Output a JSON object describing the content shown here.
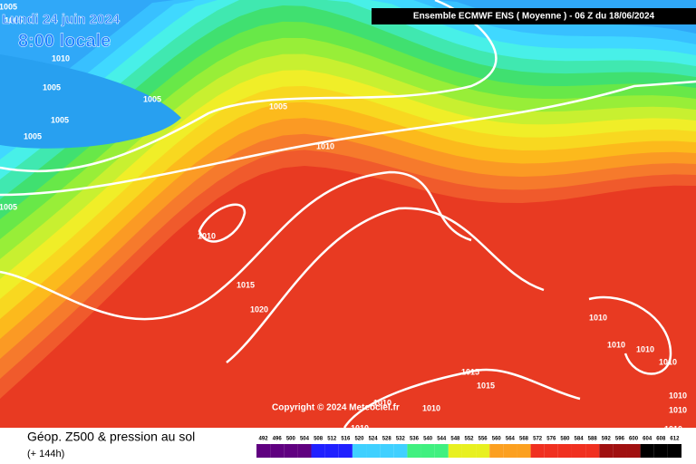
{
  "header": {
    "date": "Lundi 24 juin 2024",
    "time": "8:00 locale",
    "run": "Ensemble ECMWF ENS  ( Moyenne )  - 06 Z du 18/06/2024"
  },
  "copyright": "Copyright © 2024 Meteociel.fr",
  "footer": {
    "title": "Géop. Z500 & pression au sol",
    "subtitle": "(+ 144h)"
  },
  "scale": {
    "labels": [
      492,
      496,
      500,
      504,
      508,
      512,
      516,
      520,
      524,
      528,
      532,
      536,
      540,
      544,
      548,
      552,
      556,
      560,
      564,
      568,
      572,
      576,
      580,
      584,
      588,
      592,
      596,
      600,
      604,
      608,
      612
    ]
  },
  "isobars": [
    1005,
    1010,
    1005,
    1005,
    1005,
    1005,
    1005,
    1005,
    1010,
    1005,
    1010,
    1015,
    1020,
    1010,
    1010,
    1010,
    1010,
    1015,
    1015,
    1010,
    1010,
    1010,
    1010,
    1010,
    1010
  ]
}
